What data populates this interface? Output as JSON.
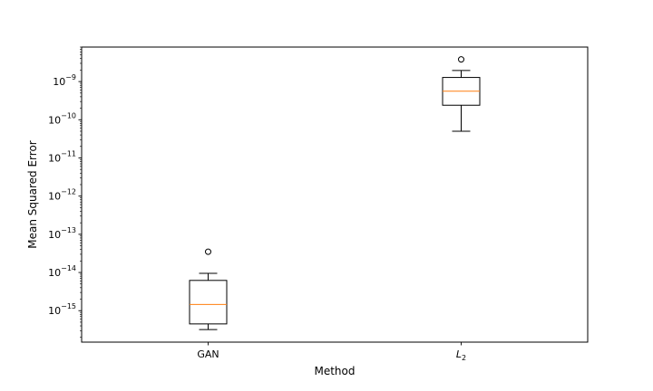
{
  "chart_data": {
    "type": "box",
    "xlabel": "Method",
    "ylabel": "Mean Squared Error",
    "yscale": "log",
    "ylim": [
      1.5e-16,
      8e-09
    ],
    "grid": false,
    "categories": [
      "GAN",
      "L2"
    ],
    "boxes": [
      {
        "name": "GAN",
        "whisker_low": 3.2e-16,
        "q1": 4.5e-16,
        "median": 1.45e-15,
        "q3": 6.2e-15,
        "whisker_high": 9.5e-15,
        "outliers": [
          3.5e-14
        ]
      },
      {
        "name": "L2",
        "whisker_low": 5e-11,
        "q1": 2.4e-10,
        "median": 5.6e-10,
        "q3": 1.28e-09,
        "whisker_high": 1.95e-09,
        "outliers": [
          3.8e-09
        ]
      }
    ],
    "ytick_exponents": [
      -15,
      -14,
      -13,
      -12,
      -11,
      -10,
      -9
    ],
    "colors": {
      "box": "#000000",
      "median": "#ff7f0e"
    }
  }
}
